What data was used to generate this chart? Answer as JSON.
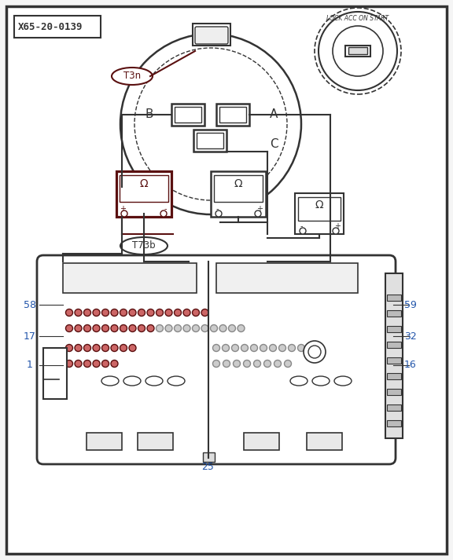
{
  "bg_color": "#f5f5f5",
  "border_color": "#222222",
  "dark_red": "#5a1010",
  "dark_color": "#333333",
  "blue_color": "#2255aa",
  "title_box": "X65-20-0139",
  "label_B": "B",
  "label_A": "A",
  "label_C": "C",
  "label_T3n": "T3n",
  "label_T73b": "T73b",
  "label_LOCK": "LOCK ACC ON START",
  "pin_labels": [
    "58",
    "59",
    "17",
    "32",
    "1",
    "16",
    "25"
  ]
}
